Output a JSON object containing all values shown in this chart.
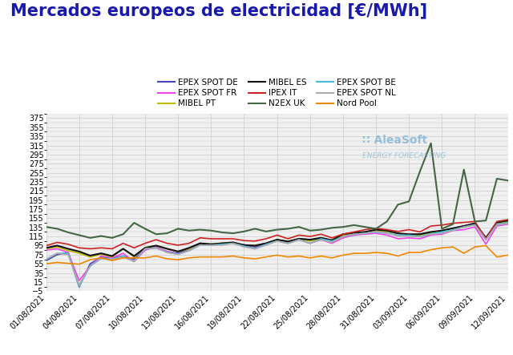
{
  "title": "Mercados europeos de electricidad [€/MWh]",
  "title_fontsize": 15,
  "title_fontweight": "bold",
  "title_color": "#1a1aaa",
  "background_color": "#ffffff",
  "plot_background": "#f0f0f0",
  "ylim": [
    -5,
    385
  ],
  "yticks": [
    -5,
    15,
    35,
    55,
    75,
    95,
    115,
    135,
    155,
    175,
    195,
    215,
    235,
    255,
    275,
    295,
    315,
    335,
    355,
    375
  ],
  "grid_color": "#cccccc",
  "xtick_labels": [
    "01/08/2021",
    "04/08/2021",
    "07/08/2021",
    "10/08/2021",
    "13/08/2021",
    "16/08/2021",
    "19/08/2021",
    "22/08/2021",
    "25/08/2021",
    "28/08/2021",
    "31/08/2021",
    "03/09/2021",
    "06/09/2021",
    "09/09/2021",
    "12/09/2021"
  ],
  "series": [
    {
      "label": "EPEX SPOT DE",
      "color": "#4444bb",
      "lw": 1.2,
      "values": [
        62,
        75,
        80,
        4,
        55,
        70,
        68,
        72,
        65,
        88,
        90,
        82,
        78,
        88,
        100,
        96,
        100,
        100,
        97,
        92,
        98,
        108,
        103,
        110,
        108,
        110,
        105,
        118,
        122,
        123,
        128,
        126,
        122,
        118,
        120,
        124,
        126,
        133,
        138,
        142,
        108,
        144,
        148
      ]
    },
    {
      "label": "EPEX SPOT FR",
      "color": "#ee44ee",
      "lw": 1.2,
      "values": [
        85,
        88,
        80,
        18,
        50,
        72,
        68,
        78,
        60,
        85,
        92,
        82,
        76,
        84,
        98,
        96,
        98,
        100,
        94,
        88,
        98,
        105,
        100,
        108,
        100,
        108,
        100,
        112,
        118,
        120,
        122,
        118,
        110,
        112,
        110,
        118,
        120,
        128,
        130,
        136,
        98,
        138,
        142
      ]
    },
    {
      "label": "MIBEL PT",
      "color": "#bbbb00",
      "lw": 1.2,
      "values": [
        88,
        92,
        84,
        78,
        70,
        76,
        70,
        88,
        70,
        90,
        95,
        88,
        82,
        88,
        100,
        98,
        100,
        102,
        96,
        95,
        100,
        108,
        104,
        110,
        105,
        110,
        105,
        118,
        122,
        124,
        128,
        126,
        122,
        118,
        118,
        124,
        126,
        132,
        136,
        142,
        112,
        144,
        148
      ]
    },
    {
      "label": "MIBEL ES",
      "color": "#111111",
      "lw": 1.5,
      "values": [
        90,
        95,
        88,
        82,
        73,
        78,
        72,
        88,
        72,
        90,
        95,
        88,
        82,
        90,
        100,
        98,
        100,
        102,
        96,
        95,
        100,
        108,
        104,
        110,
        108,
        112,
        107,
        120,
        123,
        125,
        130,
        128,
        122,
        120,
        120,
        125,
        128,
        133,
        138,
        144,
        112,
        146,
        150
      ]
    },
    {
      "label": "IPEX IT",
      "color": "#cc2222",
      "lw": 1.2,
      "values": [
        95,
        102,
        98,
        90,
        88,
        90,
        88,
        100,
        90,
        100,
        108,
        100,
        96,
        100,
        112,
        110,
        110,
        110,
        106,
        105,
        110,
        118,
        110,
        118,
        115,
        120,
        112,
        120,
        125,
        130,
        133,
        130,
        126,
        130,
        125,
        138,
        140,
        144,
        146,
        148,
        110,
        148,
        152
      ]
    },
    {
      "label": "N2EX UK",
      "color": "#446644",
      "lw": 1.5,
      "values": [
        136,
        132,
        124,
        118,
        112,
        116,
        112,
        120,
        145,
        132,
        120,
        122,
        132,
        128,
        130,
        128,
        124,
        122,
        126,
        132,
        126,
        130,
        132,
        136,
        128,
        130,
        134,
        136,
        140,
        136,
        132,
        148,
        185,
        192,
        258,
        320,
        132,
        142,
        262,
        148,
        150,
        242,
        238
      ]
    },
    {
      "label": "EPEX SPOT BE",
      "color": "#44bbdd",
      "lw": 1.2,
      "values": [
        65,
        78,
        78,
        5,
        50,
        68,
        65,
        72,
        60,
        88,
        90,
        80,
        76,
        84,
        96,
        96,
        98,
        100,
        94,
        88,
        98,
        105,
        100,
        108,
        100,
        110,
        105,
        115,
        120,
        122,
        125,
        122,
        118,
        118,
        115,
        121,
        125,
        130,
        136,
        141,
        108,
        142,
        145
      ]
    },
    {
      "label": "EPEX SPOT NL",
      "color": "#aaaaaa",
      "lw": 1.2,
      "values": [
        65,
        78,
        75,
        8,
        50,
        66,
        65,
        70,
        60,
        88,
        90,
        80,
        76,
        84,
        96,
        96,
        96,
        100,
        92,
        88,
        96,
        105,
        100,
        108,
        100,
        108,
        102,
        115,
        120,
        122,
        126,
        122,
        116,
        116,
        114,
        120,
        122,
        128,
        136,
        140,
        108,
        140,
        144
      ]
    },
    {
      "label": "Nord Pool",
      "color": "#ee8800",
      "lw": 1.2,
      "values": [
        55,
        58,
        56,
        54,
        64,
        68,
        62,
        68,
        68,
        68,
        72,
        66,
        64,
        68,
        70,
        70,
        70,
        72,
        68,
        66,
        70,
        74,
        70,
        72,
        68,
        72,
        68,
        74,
        78,
        78,
        80,
        78,
        72,
        80,
        80,
        86,
        90,
        92,
        78,
        92,
        95,
        70,
        74
      ]
    }
  ],
  "legend_order": [
    "EPEX SPOT DE",
    "EPEX SPOT FR",
    "MIBEL PT",
    "MIBEL ES",
    "IPEX IT",
    "N2EX UK",
    "EPEX SPOT BE",
    "EPEX SPOT NL",
    "Nord Pool"
  ]
}
